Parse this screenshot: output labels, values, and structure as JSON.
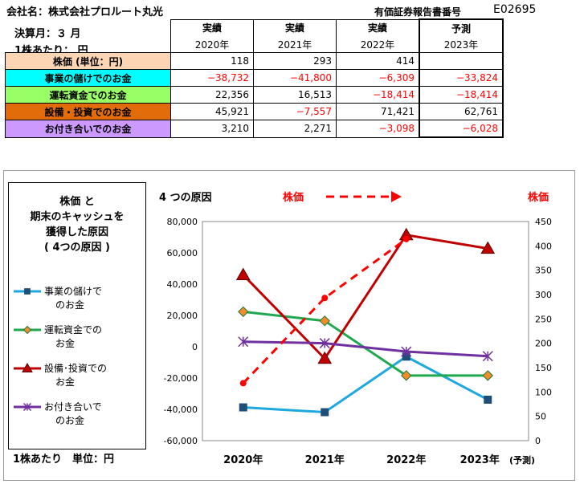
{
  "header": {
    "company_label": "会社名：株式会社プロルート丸光",
    "report_label": "有価証券報告書番号",
    "report_code": "E02695",
    "fiscal_month": "決算月：３ 月",
    "per_share": "1株あたり：  円"
  },
  "table": {
    "status_labels": [
      "実績",
      "実績",
      "実績",
      "予測"
    ],
    "year_labels": [
      "2020年",
      "2021年",
      "2022年",
      "2023年"
    ],
    "rows": [
      {
        "label": "株価 (単位：円)",
        "bg": "#fcd5b4",
        "values": [
          "118",
          "293",
          "414",
          ""
        ],
        "negative": [
          false,
          false,
          false,
          false
        ]
      },
      {
        "label": "事業の儲けでのお金",
        "bg": "#00ffff",
        "values": [
          "−38,732",
          "−41,800",
          "−6,309",
          "−33,824"
        ],
        "negative": [
          true,
          true,
          true,
          true
        ]
      },
      {
        "label": "運転資金でのお金",
        "bg": "#99ff66",
        "values": [
          "22,356",
          "16,513",
          "−18,414",
          "−18,414"
        ],
        "negative": [
          false,
          false,
          true,
          true
        ]
      },
      {
        "label": "設備・投資でのお金",
        "bg": "#e26b0a",
        "values": [
          "45,921",
          "−7,557",
          "71,421",
          "62,761"
        ],
        "negative": [
          false,
          true,
          false,
          false
        ]
      },
      {
        "label": "お付き合いでのお金",
        "bg": "#cc99ff",
        "values": [
          "3,210",
          "2,271",
          "−3,098",
          "−6,028"
        ],
        "negative": [
          false,
          false,
          true,
          true
        ]
      }
    ]
  },
  "legend": {
    "title_lines": [
      "株価 と",
      "期末のキャッシュを",
      "獲得した原因",
      "( 4つの原因 )"
    ],
    "items": [
      {
        "lines": [
          "事業の儲けで",
          "のお金"
        ],
        "color": "#1fa8e0",
        "marker": "square"
      },
      {
        "lines": [
          "運転資金での",
          "お金"
        ],
        "color": "#1fa84f",
        "marker": "diamond"
      },
      {
        "lines": [
          "設備･投資での",
          "お金"
        ],
        "color": "#c00000",
        "marker": "triangle"
      },
      {
        "lines": [
          "お付き合いで",
          "のお金"
        ],
        "color": "#7030a0",
        "marker": "star"
      }
    ],
    "unit_note": "1株あたり　単位：円"
  },
  "chart_data": {
    "type": "line",
    "title": "4 つの原因",
    "stock_label": "株価",
    "right_axis_label": "株価",
    "categories": [
      "2020年",
      "2021年",
      "2022年",
      "2023年"
    ],
    "forecast_note": "(予測)",
    "ylim": [
      -60000,
      80000
    ],
    "ytick_step": 20000,
    "ytick_labels": [
      "80,000",
      "60,000",
      "40,000",
      "20,000",
      "0",
      "-20,000",
      "-40,000",
      "-60,000"
    ],
    "y2lim": [
      0,
      450
    ],
    "y2tick_step": 50,
    "y2tick_labels": [
      "450",
      "400",
      "350",
      "300",
      "250",
      "200",
      "150",
      "100",
      "50",
      "0"
    ],
    "series": [
      {
        "name": "事業の儲けでのお金",
        "axis": "left",
        "values": [
          -38732,
          -41800,
          -6309,
          -33824
        ],
        "color": "#1fa8e0",
        "marker": "square",
        "dashed": false
      },
      {
        "name": "運転資金でのお金",
        "axis": "left",
        "values": [
          22356,
          16513,
          -18414,
          -18414
        ],
        "color": "#1fa84f",
        "marker": "diamond",
        "dashed": false
      },
      {
        "name": "設備・投資でのお金",
        "axis": "left",
        "values": [
          45921,
          -7557,
          71421,
          62761
        ],
        "color": "#c00000",
        "marker": "triangle",
        "dashed": false
      },
      {
        "name": "お付き合いでのお金",
        "axis": "left",
        "values": [
          3210,
          2271,
          -3098,
          -6028
        ],
        "color": "#7030a0",
        "marker": "star",
        "dashed": false
      },
      {
        "name": "株価",
        "axis": "right",
        "values": [
          118,
          293,
          414,
          null
        ],
        "color": "#ff0000",
        "marker": "circle",
        "dashed": true
      }
    ]
  }
}
